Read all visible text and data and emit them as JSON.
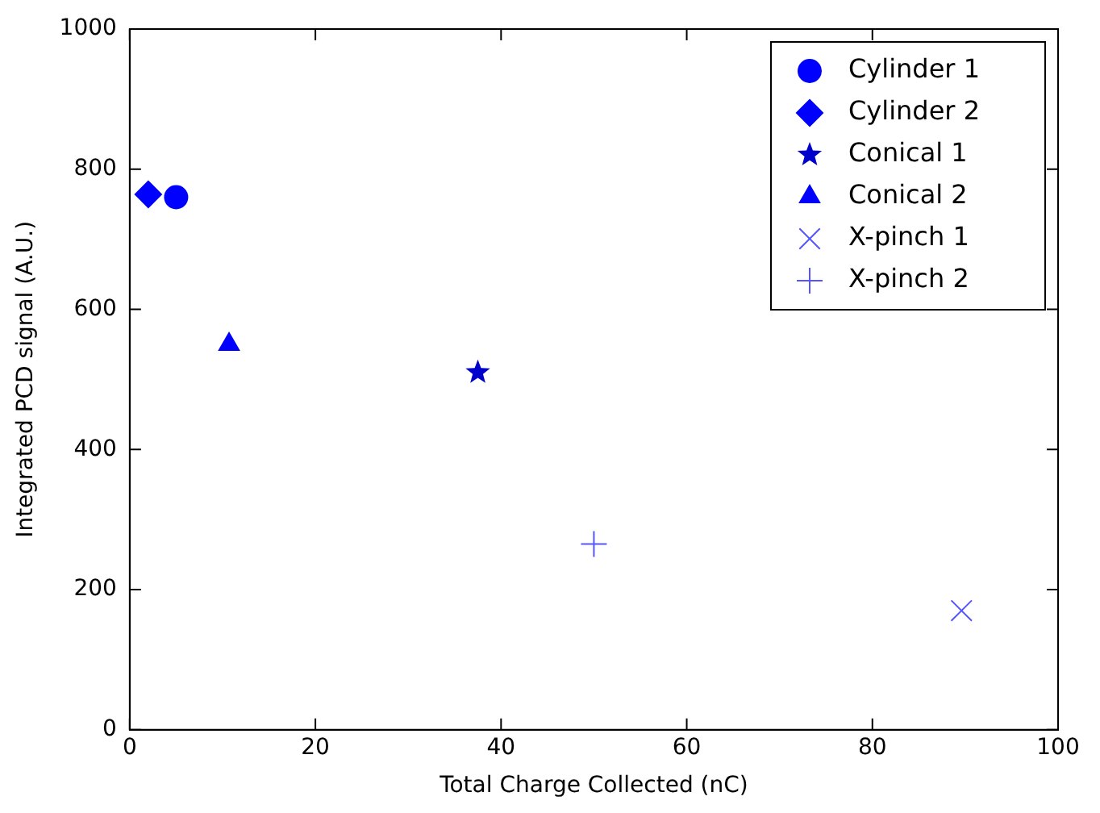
{
  "chart_data": {
    "type": "scatter",
    "xlabel": "Total Charge Collected (nC)",
    "ylabel": "Integrated PCD signal (A.U.)",
    "xlim": [
      0,
      100
    ],
    "xticks": [
      0,
      20,
      40,
      60,
      80,
      100
    ],
    "ylim": [
      0,
      1000
    ],
    "yticks": [
      0,
      200,
      400,
      600,
      800,
      1000
    ],
    "grid": false,
    "legend": "top right",
    "series": [
      {
        "name": "Cylinder 1",
        "color": "#0000ff",
        "marker": "circle",
        "x": [
          5
        ],
        "values": [
          760
        ]
      },
      {
        "name": "Cylinder 2",
        "color": "#0000ff",
        "marker": "diamond",
        "x": [
          2
        ],
        "values": [
          764
        ]
      },
      {
        "name": "Conical 1",
        "color": "#0000cc",
        "marker": "star",
        "x": [
          37.5
        ],
        "values": [
          510
        ]
      },
      {
        "name": "Conical 2",
        "color": "#0000ff",
        "marker": "triangle",
        "x": [
          10.7
        ],
        "values": [
          550
        ]
      },
      {
        "name": "X-pinch 1",
        "color": "#5555ff",
        "marker": "cross",
        "x": [
          89.6
        ],
        "values": [
          170
        ]
      },
      {
        "name": "X-pinch 2",
        "color": "#5555ff",
        "marker": "plus",
        "x": [
          50
        ],
        "values": [
          265
        ]
      }
    ]
  }
}
